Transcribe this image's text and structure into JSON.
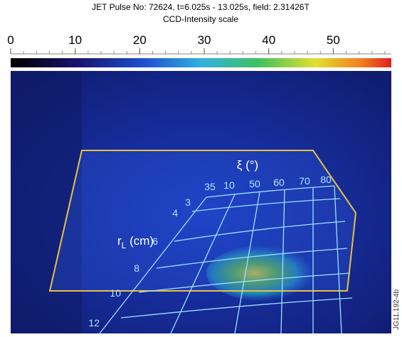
{
  "header": {
    "title": "JET Pulse No: 72624,  t=6.025s - 13.025s, field: 2.31426T",
    "subtitle": "CCD-Intensity scale"
  },
  "colorbar": {
    "lim": [
      0,
      59
    ],
    "ticks": [
      0,
      10,
      20,
      30,
      40,
      50
    ]
  },
  "overlay": {
    "xi_label": "ξ (°)",
    "xi_ticks": [
      "35",
      "10",
      "50",
      "60",
      "70",
      "80"
    ],
    "r_label": "r",
    "r_label_sub": "L",
    "r_label_unit": " (cm)",
    "r_ticks": [
      "3",
      "4",
      "6",
      "8",
      "10",
      "12"
    ]
  },
  "figure_id": "JG11.192-4b"
}
